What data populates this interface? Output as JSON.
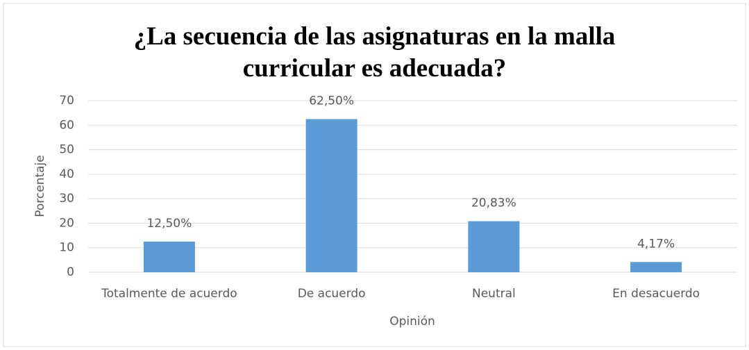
{
  "chart_data": {
    "type": "bar",
    "title": "¿La secuencia de las asignaturas en la malla curricular es adecuada?",
    "x_label": "Opinión",
    "y_label": "Porcentaje",
    "categories": [
      "Totalmente de acuerdo",
      "De acuerdo",
      "Neutral",
      "En desacuerdo"
    ],
    "values": [
      12.5,
      62.5,
      20.83,
      4.17
    ],
    "value_labels": [
      "12,50%",
      "62,50%",
      "20,83%",
      "4,17%"
    ],
    "color": "#5b9bd5",
    "ylim": [
      0,
      70
    ],
    "yticks": [
      0,
      10,
      20,
      30,
      40,
      50,
      60,
      70
    ],
    "grid": true
  }
}
